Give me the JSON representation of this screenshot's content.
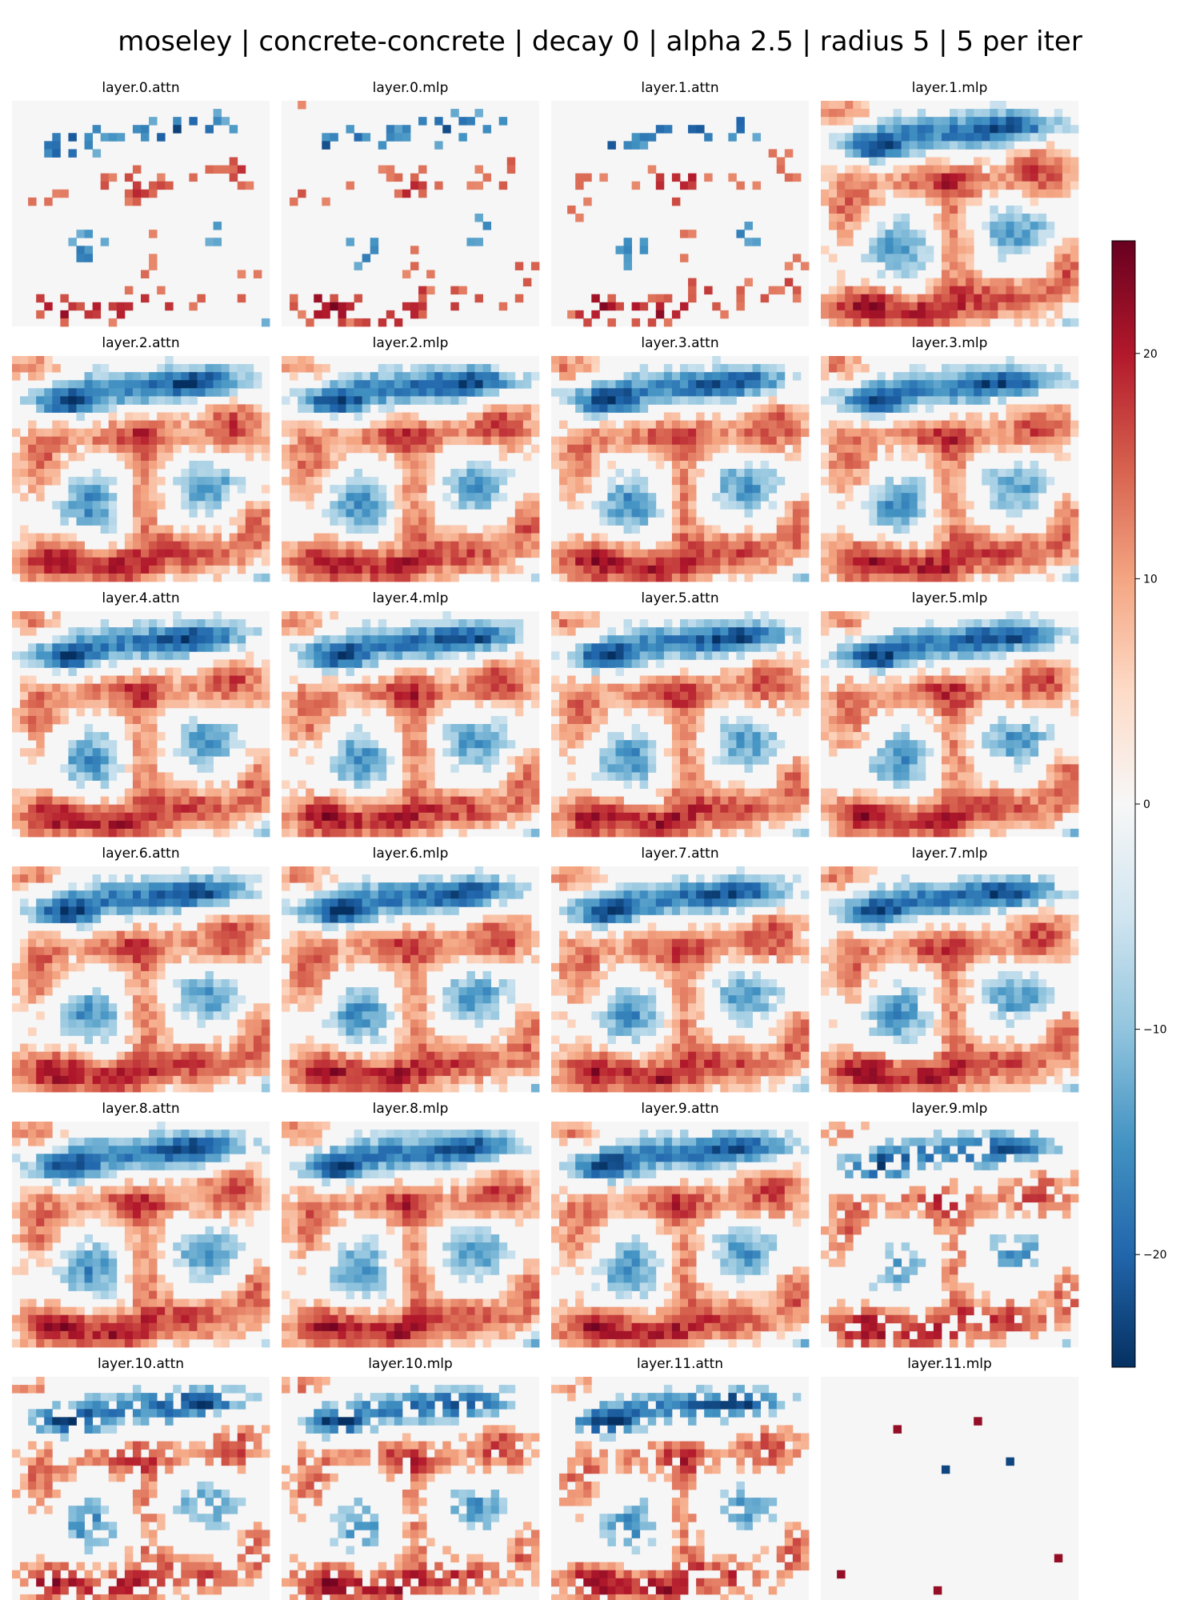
{
  "title": "moseley | concrete-concrete | decay 0 | alpha 2.5 | radius 5 | 5 per iter",
  "chart_data": {
    "type": "heatmap",
    "grid": "4x6 small multiples, each 32x28 cells",
    "colormap": "RdBu_r",
    "background_color": "#f6f6f6",
    "colorbar": {
      "vmin": -25,
      "vmax": 25,
      "ticks": [
        -20,
        -10,
        0,
        10,
        20
      ],
      "tick_labels": [
        "−20",
        "−10",
        "0",
        "10",
        "20"
      ],
      "placement": "right"
    },
    "panels": [
      {
        "title": "layer.0.attn",
        "level": "sparse"
      },
      {
        "title": "layer.0.mlp",
        "level": "sparse"
      },
      {
        "title": "layer.1.attn",
        "level": "sparse"
      },
      {
        "title": "layer.1.mlp",
        "level": "dense"
      },
      {
        "title": "layer.2.attn",
        "level": "dense"
      },
      {
        "title": "layer.2.mlp",
        "level": "dense"
      },
      {
        "title": "layer.3.attn",
        "level": "dense"
      },
      {
        "title": "layer.3.mlp",
        "level": "dense"
      },
      {
        "title": "layer.4.attn",
        "level": "dense"
      },
      {
        "title": "layer.4.mlp",
        "level": "dense"
      },
      {
        "title": "layer.5.attn",
        "level": "dense"
      },
      {
        "title": "layer.5.mlp",
        "level": "dense"
      },
      {
        "title": "layer.6.attn",
        "level": "dense"
      },
      {
        "title": "layer.6.mlp",
        "level": "dense"
      },
      {
        "title": "layer.7.attn",
        "level": "dense"
      },
      {
        "title": "layer.7.mlp",
        "level": "dense"
      },
      {
        "title": "layer.8.attn",
        "level": "dense"
      },
      {
        "title": "layer.8.mlp",
        "level": "dense"
      },
      {
        "title": "layer.9.attn",
        "level": "dense"
      },
      {
        "title": "layer.9.mlp",
        "level": "medium"
      },
      {
        "title": "layer.10.attn",
        "level": "medium"
      },
      {
        "title": "layer.10.mlp",
        "level": "medium"
      },
      {
        "title": "layer.11.attn",
        "level": "medium"
      },
      {
        "title": "layer.11.mlp",
        "level": "very-sparse"
      }
    ]
  }
}
